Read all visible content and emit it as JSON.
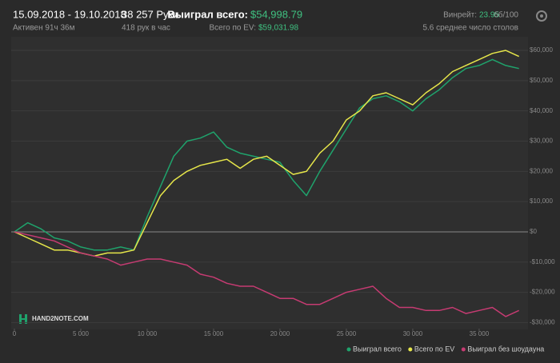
{
  "header": {
    "date_range": "15.09.2018 - 19.10.2018",
    "active": "Активен 91ч 36м",
    "hands": "38 257 Руки",
    "hands_per_hour": "418 рук в час",
    "won_label": "Выиграл всего:",
    "won_value": "$54,998.79",
    "ev_label": "Всего по EV:",
    "ev_value": "$59,031.98",
    "winrate_label": "Винрейт:",
    "winrate_value": "23.95",
    "winrate_unit": "бб/100",
    "tables": "5.6 среднее число столов"
  },
  "logo": "HAND2NOTE.COM",
  "chart_data": {
    "type": "line",
    "x": [
      0,
      1000,
      2000,
      3000,
      4000,
      5000,
      6000,
      7000,
      8000,
      9000,
      10000,
      11000,
      12000,
      13000,
      14000,
      15000,
      16000,
      17000,
      18000,
      19000,
      20000,
      21000,
      22000,
      23000,
      24000,
      25000,
      26000,
      27000,
      28000,
      29000,
      30000,
      31000,
      32000,
      33000,
      34000,
      35000,
      36000,
      37000,
      38000
    ],
    "series": [
      {
        "name": "Выиграл всего",
        "color": "#1fa36c",
        "values": [
          0,
          3000,
          1000,
          -2000,
          -3000,
          -5000,
          -6000,
          -6000,
          -5000,
          -6000,
          5000,
          15000,
          25000,
          30000,
          31000,
          33000,
          28000,
          26000,
          25000,
          24000,
          23000,
          17000,
          12000,
          20000,
          27000,
          34000,
          41000,
          44000,
          45000,
          43000,
          40000,
          44000,
          47000,
          51000,
          54000,
          55000,
          57000,
          55000,
          54000
        ]
      },
      {
        "name": "Всего по EV",
        "color": "#e6e64a",
        "values": [
          0,
          -2000,
          -4000,
          -6000,
          -6000,
          -7000,
          -8000,
          -7000,
          -7000,
          -6000,
          3000,
          12000,
          17000,
          20000,
          22000,
          23000,
          24000,
          21000,
          24000,
          25000,
          22000,
          19000,
          20000,
          26000,
          30000,
          37000,
          40000,
          45000,
          46000,
          44000,
          42000,
          46000,
          49000,
          53000,
          55000,
          57000,
          59000,
          60000,
          58000
        ]
      },
      {
        "name": "Выиграл без шоудауна",
        "color": "#c63b72",
        "values": [
          0,
          -1000,
          -2000,
          -3000,
          -5000,
          -7000,
          -8000,
          -9000,
          -11000,
          -10000,
          -9000,
          -9000,
          -10000,
          -11000,
          -14000,
          -15000,
          -17000,
          -18000,
          -18000,
          -20000,
          -22000,
          -22000,
          -24000,
          -24000,
          -22000,
          -20000,
          -19000,
          -18000,
          -22000,
          -25000,
          -25000,
          -26000,
          -26000,
          -25000,
          -27000,
          -26000,
          -25000,
          -28000,
          -26000
        ]
      }
    ],
    "xlim": [
      0,
      38500
    ],
    "xticks": [
      0,
      {
        "value": 5000,
        "label": "5 000"
      },
      {
        "value": 10000,
        "label": "10 000"
      },
      {
        "value": 15000,
        "label": "15 000"
      },
      {
        "value": 20000,
        "label": "20 000"
      },
      {
        "value": 25000,
        "label": "25 000"
      },
      {
        "value": 30000,
        "label": "30 000"
      },
      {
        "value": 35000,
        "label": "35 000"
      }
    ],
    "ylim": [
      -32000,
      64500
    ],
    "yticks": [
      {
        "value": -30000,
        "label": "-$30,000"
      },
      {
        "value": -20000,
        "label": "-$20,000"
      },
      {
        "value": -10000,
        "label": "-$10,000"
      },
      {
        "value": 0,
        "label": "$0"
      },
      {
        "value": 10000,
        "label": "$10,000"
      },
      {
        "value": 20000,
        "label": "$20,000"
      },
      {
        "value": 30000,
        "label": "$30,000"
      },
      {
        "value": 40000,
        "label": "$40,000"
      },
      {
        "value": 50000,
        "label": "$50,000"
      },
      {
        "value": 60000,
        "label": "$60,000"
      }
    ],
    "grid": true
  }
}
